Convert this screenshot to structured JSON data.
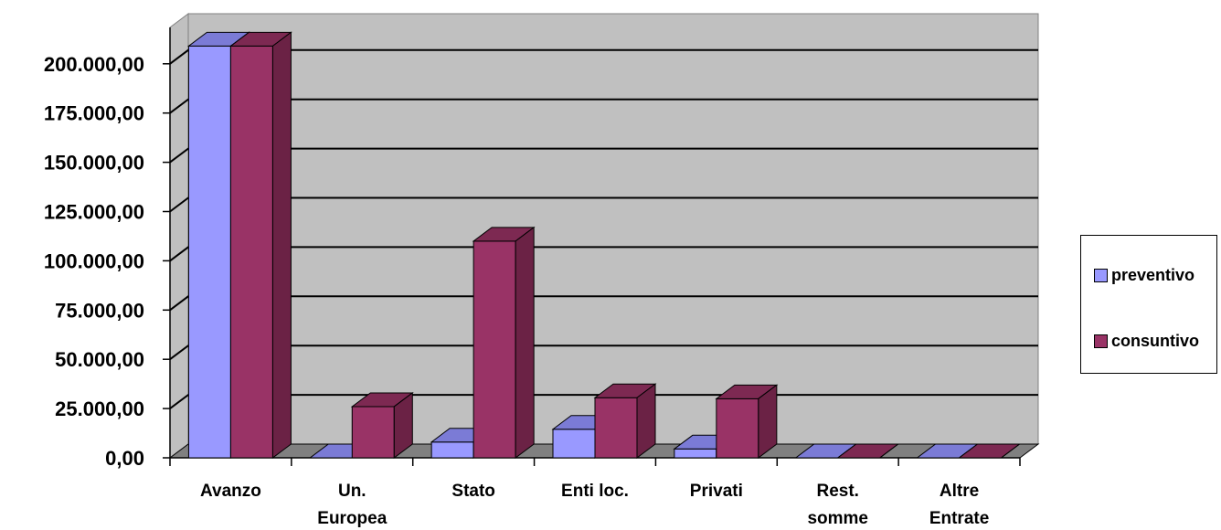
{
  "chart_data": {
    "type": "bar",
    "categories": [
      [
        "Avanzo"
      ],
      [
        "Un.",
        "Europea"
      ],
      [
        "Stato"
      ],
      [
        "Enti loc."
      ],
      [
        "Privati"
      ],
      [
        "Rest.",
        "somme"
      ],
      [
        "Altre",
        "Entrate"
      ]
    ],
    "series": [
      {
        "name": "preventivo",
        "values": [
          209000,
          0,
          8000,
          14500,
          4500,
          0,
          0
        ],
        "color": "#9999ff",
        "top_color": "#7b7bd6",
        "side_color": "#6a6ac0"
      },
      {
        "name": "consuntivo",
        "values": [
          209000,
          26000,
          110000,
          30500,
          30000,
          0,
          0
        ],
        "color": "#993366",
        "top_color": "#7d2952",
        "side_color": "#6b2245"
      }
    ],
    "yticks": [
      "0,00",
      "25.000,00",
      "50.000,00",
      "75.000,00",
      "100.000,00",
      "125.000,00",
      "150.000,00",
      "175.000,00",
      "200.000,00"
    ],
    "ylim": [
      0,
      225000
    ],
    "grid": true,
    "legend_position": "right",
    "title": "",
    "xlabel": "",
    "ylabel": ""
  },
  "legend": {
    "items": [
      {
        "label": "preventivo",
        "color": "#9999ff"
      },
      {
        "label": "consuntivo",
        "color": "#993366"
      }
    ]
  }
}
